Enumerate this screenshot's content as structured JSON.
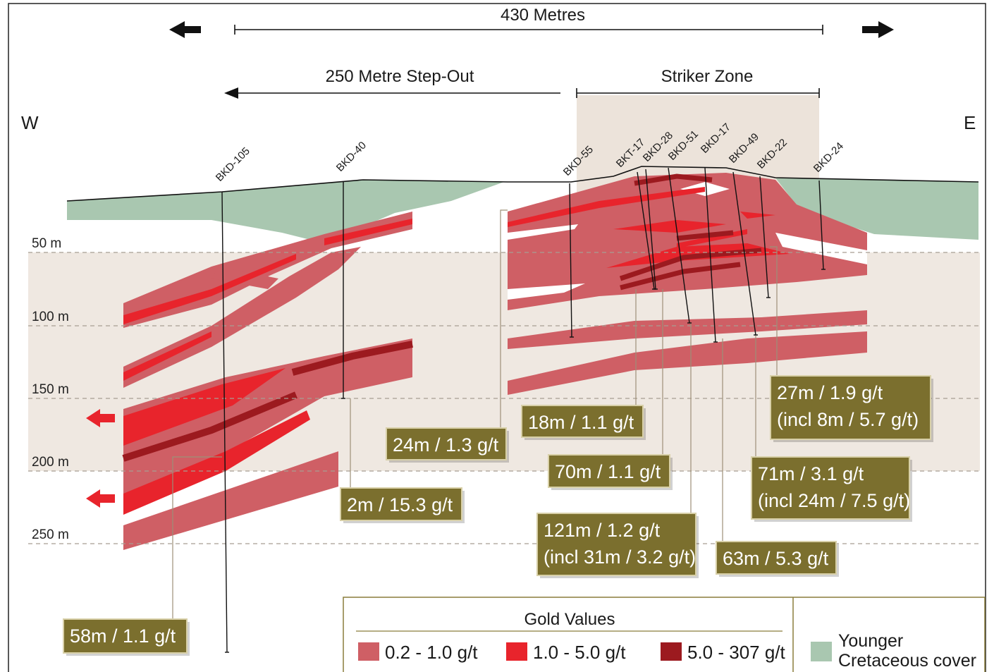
{
  "scale": {
    "label": "430 Metres"
  },
  "step_out": "250 Metre Step-Out",
  "zone": "Striker Zone",
  "compass": {
    "west": "W",
    "east": "E"
  },
  "depths": [
    "50 m",
    "100 m",
    "150 m",
    "200 m",
    "250 m"
  ],
  "drill_holes": [
    "BKD-105",
    "BKD-40",
    "BKD-55",
    "BKT-17",
    "BKD-28",
    "BKD-51",
    "BKD-17",
    "BKD-49",
    "BKD-22",
    "BKD-24"
  ],
  "intercepts": [
    {
      "lines": [
        "58m / 1.1 g/t"
      ]
    },
    {
      "lines": [
        "2m / 15.3 g/t"
      ]
    },
    {
      "lines": [
        "24m / 1.3 g/t"
      ]
    },
    {
      "lines": [
        "18m / 1.1 g/t"
      ]
    },
    {
      "lines": [
        "70m / 1.1 g/t"
      ]
    },
    {
      "lines": [
        "121m / 1.2 g/t",
        "(incl 31m / 3.2 g/t)"
      ]
    },
    {
      "lines": [
        "63m / 5.3 g/t"
      ]
    },
    {
      "lines": [
        "27m / 1.9 g/t",
        "(incl 8m / 5.7 g/t)"
      ]
    },
    {
      "lines": [
        "71m / 3.1 g/t",
        "(incl 24m / 7.5 g/t)"
      ]
    }
  ],
  "legend": {
    "title": "Gold Values",
    "items": [
      "0.2 - 1.0 g/t",
      "1.0 - 5.0 g/t",
      "5.0 - 307 g/t"
    ],
    "cover": [
      "Younger",
      "Cretaceous cover"
    ]
  }
}
